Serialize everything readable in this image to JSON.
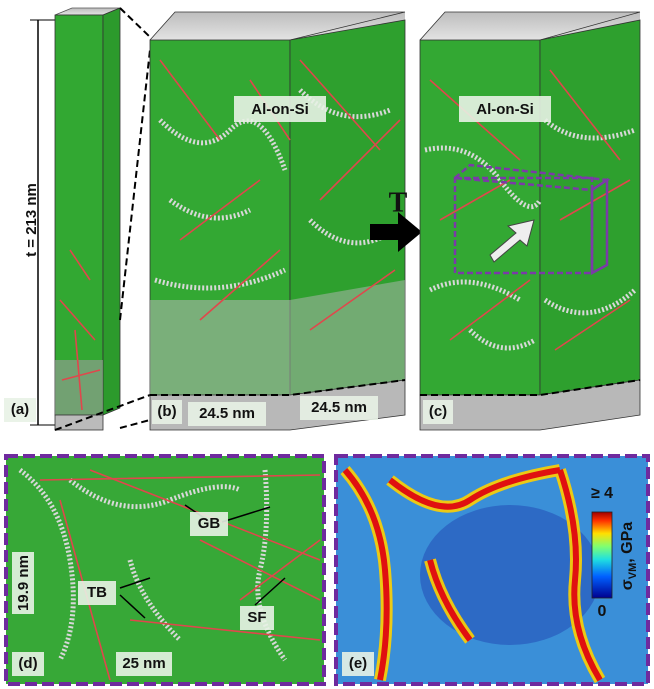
{
  "panels": {
    "a": {
      "label": "(a)",
      "thickness": "t = 213 nm"
    },
    "b": {
      "label": "(b)",
      "title": "Al-on-Si",
      "width_x": "24.5 nm",
      "width_y": "24.5 nm"
    },
    "arrow": "T",
    "c": {
      "label": "(c)",
      "title": "Al-on-Si"
    },
    "d": {
      "label": "(d)",
      "height": "19.9 nm",
      "width": "25 nm",
      "annotations": [
        "GB",
        "TB",
        "SF"
      ]
    },
    "e": {
      "label": "(e)",
      "colorbar_max": "≥ 4",
      "colorbar_min": "0",
      "colorbar_symbol": "σ",
      "colorbar_subscript": "VM",
      "colorbar_unit": ", GPa"
    }
  }
}
